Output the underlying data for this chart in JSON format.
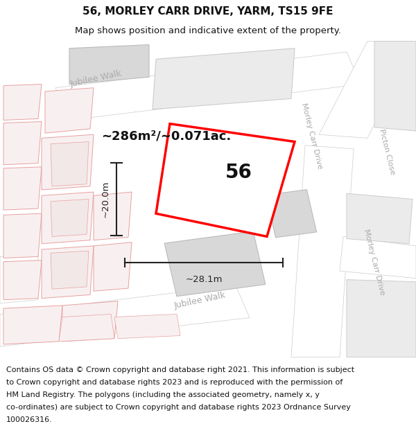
{
  "title": "56, MORLEY CARR DRIVE, YARM, TS15 9FE",
  "subtitle": "Map shows position and indicative extent of the property.",
  "footer_line1": "Contains OS data © Crown copyright and database right 2021. This information is subject",
  "footer_line2": "to Crown copyright and database rights 2023 and is reproduced with the permission of",
  "footer_line3": "HM Land Registry. The polygons (including the associated geometry, namely x, y",
  "footer_line4": "co-ordinates) are subject to Crown copyright and database rights 2023 Ordnance Survey",
  "footer_line5": "100026316.",
  "map_bg": "#f0f0f0",
  "road_color": "#ffffff",
  "block_fill_dark": "#d8d8d8",
  "block_fill_light": "#ebebeb",
  "plot_stroke": "#ff0000",
  "plot_outline_color": "#f5c6c6",
  "dim_color": "#222222",
  "road_label_color": "#aaaaaa",
  "label_56": "56",
  "area_label": "~286m²/~0.071ac.",
  "dim_h": "~20.0m",
  "dim_w": "~28.1m",
  "title_fontsize": 11,
  "subtitle_fontsize": 9.5,
  "footer_fontsize": 8.0,
  "figsize": [
    6.0,
    6.25
  ]
}
